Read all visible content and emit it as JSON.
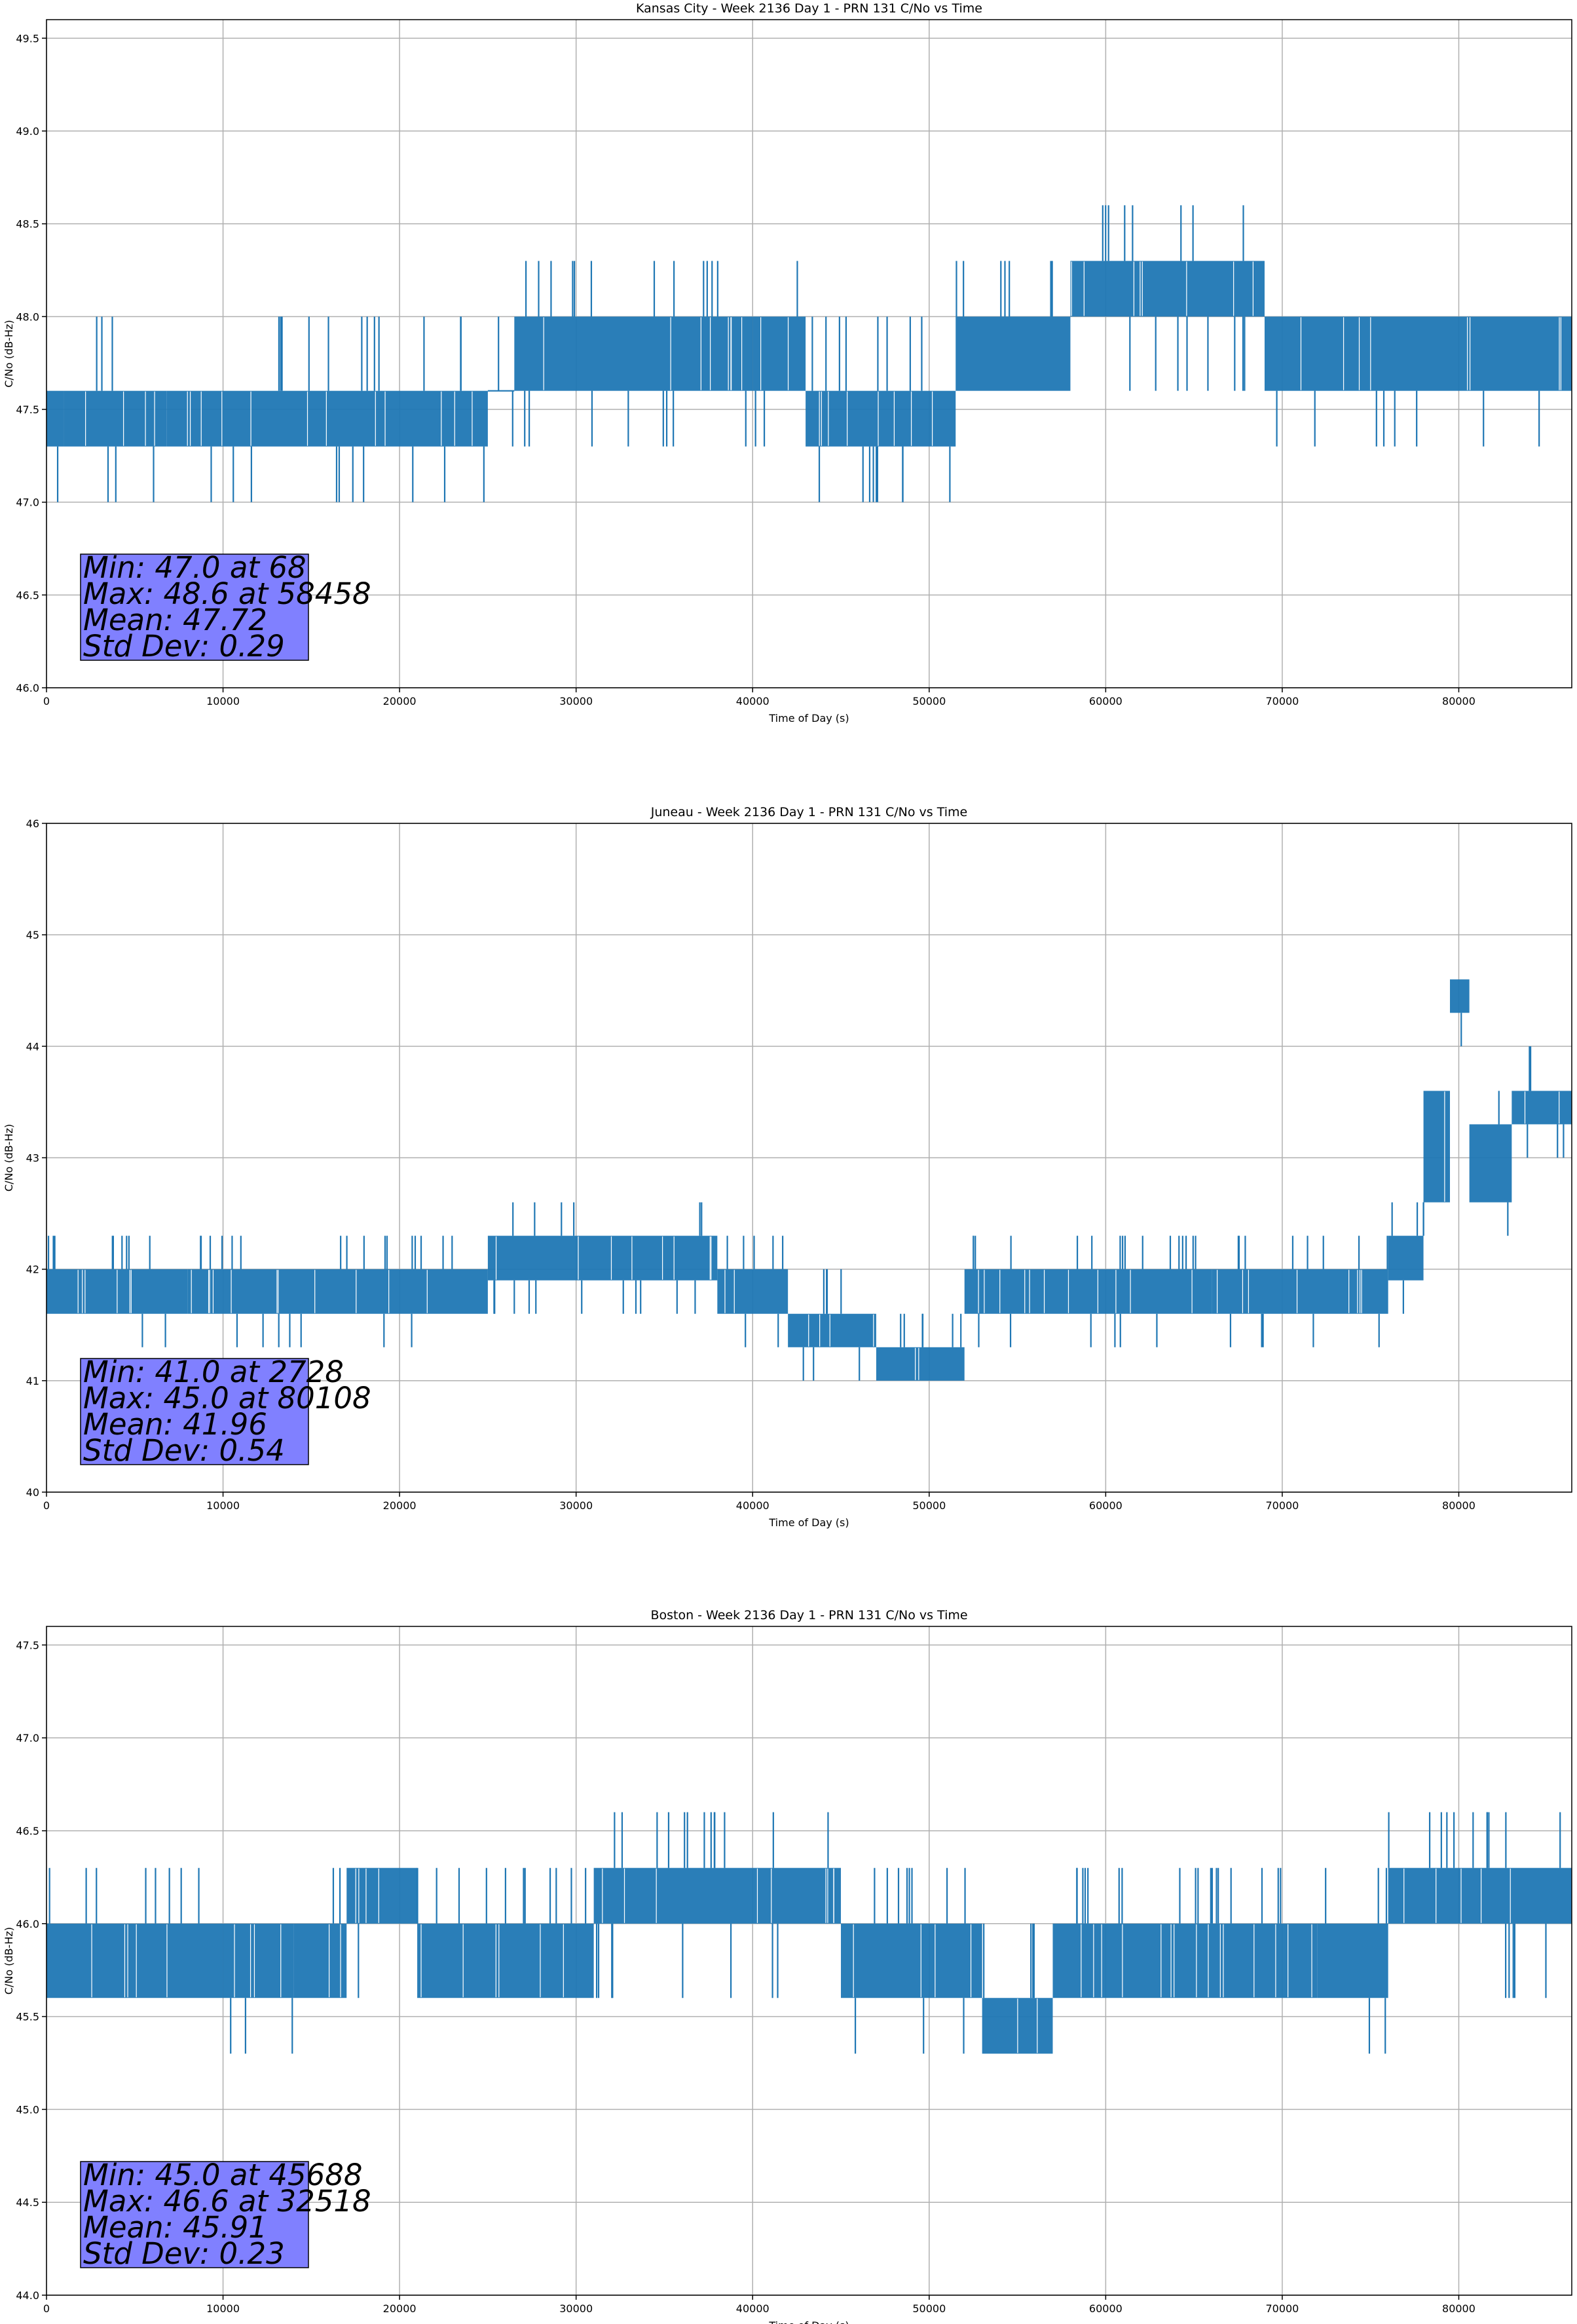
{
  "chart_data": [
    {
      "type": "line",
      "title": "Kansas City - Week 2136 Day 1 - PRN 131 C/No vs Time",
      "xlabel": "Time of Day (s)",
      "ylabel": "C/No (dB-Hz)",
      "xlim": [
        0,
        86400
      ],
      "ylim": [
        46.0,
        49.6
      ],
      "xticks": [
        0,
        10000,
        20000,
        30000,
        40000,
        50000,
        60000,
        70000,
        80000
      ],
      "xtick_labels": [
        "0",
        "10000",
        "20000",
        "30000",
        "40000",
        "50000",
        "60000",
        "70000",
        "80000"
      ],
      "yticks": [
        46.0,
        46.5,
        47.0,
        47.5,
        48.0,
        48.5,
        49.0,
        49.5
      ],
      "ytick_labels": [
        "46.0",
        "46.5",
        "47.0",
        "47.5",
        "48.0",
        "48.5",
        "49.0",
        "49.5"
      ],
      "grid": true,
      "color": "#1f77b4",
      "stats_box_color": "#8080ff",
      "stats": [
        "Min: 47.0 at 68",
        "Max: 48.6 at 58458",
        "Mean: 47.72",
        "Std Dev: 0.29"
      ],
      "series": [
        {
          "name": "C/No",
          "segments": [
            {
              "x": [
                0,
                1000
              ],
              "band": [
                47.3,
                47.6
              ],
              "spikes_up": [
                48.0
              ],
              "spikes_down": [
                47.0
              ]
            },
            {
              "x": [
                1000,
                6800
              ],
              "band": [
                47.3,
                47.6
              ],
              "spikes_up": [
                48.0
              ],
              "spikes_down": [
                47.0
              ]
            },
            {
              "x": [
                6800,
                11500
              ],
              "band": [
                47.3,
                47.6
              ],
              "spikes_up": [
                47.6
              ],
              "spikes_down": [
                47.0
              ]
            },
            {
              "x": [
                11500,
                25000
              ],
              "band": [
                47.3,
                47.6
              ],
              "spikes_up": [
                48.0
              ],
              "spikes_down": [
                47.0
              ]
            },
            {
              "x": [
                25000,
                26500
              ],
              "band": [
                47.6,
                47.6
              ],
              "spikes_up": [
                48.0
              ],
              "spikes_down": [
                47.3
              ]
            },
            {
              "x": [
                26500,
                40000
              ],
              "band": [
                47.6,
                48.0
              ],
              "spikes_up": [
                48.3
              ],
              "spikes_down": [
                47.3
              ]
            },
            {
              "x": [
                40000,
                43000
              ],
              "band": [
                47.6,
                48.0
              ],
              "spikes_up": [
                48.3
              ],
              "spikes_down": [
                47.3
              ]
            },
            {
              "x": [
                43000,
                51500
              ],
              "band": [
                47.3,
                47.6
              ],
              "spikes_up": [
                48.0
              ],
              "spikes_down": [
                47.0
              ]
            },
            {
              "x": [
                51500,
                58000
              ],
              "band": [
                47.6,
                48.0
              ],
              "spikes_up": [
                48.3
              ],
              "spikes_down": [
                47.6
              ]
            },
            {
              "x": [
                58000,
                69000
              ],
              "band": [
                48.0,
                48.3
              ],
              "spikes_up": [
                48.6
              ],
              "spikes_down": [
                47.6
              ]
            },
            {
              "x": [
                69000,
                86400
              ],
              "band": [
                47.6,
                48.0
              ],
              "spikes_up": [
                48.0
              ],
              "spikes_down": [
                47.3
              ]
            }
          ]
        }
      ]
    },
    {
      "type": "line",
      "title": "Juneau - Week 2136 Day 1 - PRN 131 C/No vs Time",
      "xlabel": "Time of Day (s)",
      "ylabel": "C/No (dB-Hz)",
      "xlim": [
        0,
        86400
      ],
      "ylim": [
        40,
        46
      ],
      "xticks": [
        0,
        10000,
        20000,
        30000,
        40000,
        50000,
        60000,
        70000,
        80000
      ],
      "xtick_labels": [
        "0",
        "10000",
        "20000",
        "30000",
        "40000",
        "50000",
        "60000",
        "70000",
        "80000"
      ],
      "yticks": [
        40,
        41,
        42,
        43,
        44,
        45,
        46
      ],
      "ytick_labels": [
        "40",
        "41",
        "42",
        "43",
        "44",
        "45",
        "46"
      ],
      "grid": true,
      "color": "#1f77b4",
      "stats_box_color": "#8080ff",
      "stats": [
        "Min: 41.0 at 2728",
        "Max: 45.0 at 80108",
        "Mean: 41.96",
        "Std Dev: 0.54"
      ],
      "series": [
        {
          "name": "C/No",
          "segments": [
            {
              "x": [
                0,
                8000
              ],
              "band": [
                41.6,
                42.0
              ],
              "spikes_up": [
                42.3
              ],
              "spikes_down": [
                41.3
              ]
            },
            {
              "x": [
                8000,
                25000
              ],
              "band": [
                41.6,
                42.0
              ],
              "spikes_up": [
                42.3
              ],
              "spikes_down": [
                41.3
              ]
            },
            {
              "x": [
                25000,
                38000
              ],
              "band": [
                41.9,
                42.3
              ],
              "spikes_up": [
                42.6
              ],
              "spikes_down": [
                41.6
              ]
            },
            {
              "x": [
                38000,
                42000
              ],
              "band": [
                41.6,
                42.0
              ],
              "spikes_up": [
                42.3
              ],
              "spikes_down": [
                41.3
              ]
            },
            {
              "x": [
                42000,
                47000
              ],
              "band": [
                41.3,
                41.6
              ],
              "spikes_up": [
                42.0
              ],
              "spikes_down": [
                41.0
              ]
            },
            {
              "x": [
                47000,
                52000
              ],
              "band": [
                41.0,
                41.3
              ],
              "spikes_up": [
                41.6
              ],
              "spikes_down": [
                41.0
              ]
            },
            {
              "x": [
                52000,
                66000
              ],
              "band": [
                41.6,
                42.0
              ],
              "spikes_up": [
                42.3
              ],
              "spikes_down": [
                41.3
              ]
            },
            {
              "x": [
                66000,
                76000
              ],
              "band": [
                41.6,
                42.0
              ],
              "spikes_up": [
                42.3
              ],
              "spikes_down": [
                41.3
              ]
            },
            {
              "x": [
                76000,
                78000
              ],
              "band": [
                41.9,
                42.3
              ],
              "spikes_up": [
                42.6
              ],
              "spikes_down": [
                41.6
              ]
            },
            {
              "x": [
                78000,
                79500
              ],
              "band": [
                42.6,
                43.6
              ],
              "spikes_up": [
                44.0
              ],
              "spikes_down": [
                42.3
              ]
            },
            {
              "x": [
                79500,
                80600
              ],
              "band": [
                44.3,
                44.6
              ],
              "spikes_up": [
                45.0
              ],
              "spikes_down": [
                44.0
              ]
            },
            {
              "x": [
                80600,
                83000
              ],
              "band": [
                42.6,
                43.3
              ],
              "spikes_up": [
                43.6
              ],
              "spikes_down": [
                42.3
              ]
            },
            {
              "x": [
                83000,
                86400
              ],
              "band": [
                43.3,
                43.6
              ],
              "spikes_up": [
                44.0
              ],
              "spikes_down": [
                43.0
              ]
            }
          ]
        }
      ]
    },
    {
      "type": "line",
      "title": "Boston - Week 2136 Day 1 - PRN 131 C/No vs Time",
      "xlabel": "Time of Day (s)",
      "ylabel": "C/No (dB-Hz)",
      "xlim": [
        0,
        86400
      ],
      "ylim": [
        44.0,
        47.6
      ],
      "xticks": [
        0,
        10000,
        20000,
        30000,
        40000,
        50000,
        60000,
        70000,
        80000
      ],
      "xtick_labels": [
        "0",
        "10000",
        "20000",
        "30000",
        "40000",
        "50000",
        "60000",
        "70000",
        "80000"
      ],
      "yticks": [
        44.0,
        44.5,
        45.0,
        45.5,
        46.0,
        46.5,
        47.0,
        47.5
      ],
      "ytick_labels": [
        "44.0",
        "44.5",
        "45.0",
        "45.5",
        "46.0",
        "46.5",
        "47.0",
        "47.5"
      ],
      "grid": true,
      "color": "#1f77b4",
      "stats_box_color": "#8080ff",
      "stats": [
        "Min: 45.0 at 45688",
        "Max: 46.6 at 32518",
        "Mean: 45.91",
        "Std Dev: 0.23"
      ],
      "series": [
        {
          "name": "C/No",
          "segments": [
            {
              "x": [
                0,
                10000
              ],
              "band": [
                45.6,
                46.0
              ],
              "spikes_up": [
                46.3
              ],
              "spikes_down": [
                45.6
              ]
            },
            {
              "x": [
                10000,
                14000
              ],
              "band": [
                45.6,
                46.0
              ],
              "spikes_up": [
                46.0
              ],
              "spikes_down": [
                45.3
              ]
            },
            {
              "x": [
                14000,
                17000
              ],
              "band": [
                45.6,
                46.0
              ],
              "spikes_up": [
                46.3
              ],
              "spikes_down": [
                45.6
              ]
            },
            {
              "x": [
                17000,
                21000
              ],
              "band": [
                46.0,
                46.3
              ],
              "spikes_up": [
                46.3
              ],
              "spikes_down": [
                45.6
              ]
            },
            {
              "x": [
                21000,
                31000
              ],
              "band": [
                45.6,
                46.0
              ],
              "spikes_up": [
                46.3
              ],
              "spikes_down": [
                45.6
              ]
            },
            {
              "x": [
                31000,
                45000
              ],
              "band": [
                46.0,
                46.3
              ],
              "spikes_up": [
                46.6
              ],
              "spikes_down": [
                45.6
              ]
            },
            {
              "x": [
                45000,
                53000
              ],
              "band": [
                45.6,
                46.0
              ],
              "spikes_up": [
                46.3
              ],
              "spikes_down": [
                45.3
              ]
            },
            {
              "x": [
                53000,
                57000
              ],
              "band": [
                45.3,
                45.6
              ],
              "spikes_up": [
                46.0
              ],
              "spikes_down": [
                45.3
              ]
            },
            {
              "x": [
                57000,
                72000
              ],
              "band": [
                45.6,
                46.0
              ],
              "spikes_up": [
                46.3
              ],
              "spikes_down": [
                45.6
              ]
            },
            {
              "x": [
                72000,
                76000
              ],
              "band": [
                45.6,
                46.0
              ],
              "spikes_up": [
                46.3
              ],
              "spikes_down": [
                45.3
              ]
            },
            {
              "x": [
                76000,
                86400
              ],
              "band": [
                46.0,
                46.3
              ],
              "spikes_up": [
                46.6
              ],
              "spikes_down": [
                45.6
              ]
            }
          ]
        }
      ]
    }
  ]
}
